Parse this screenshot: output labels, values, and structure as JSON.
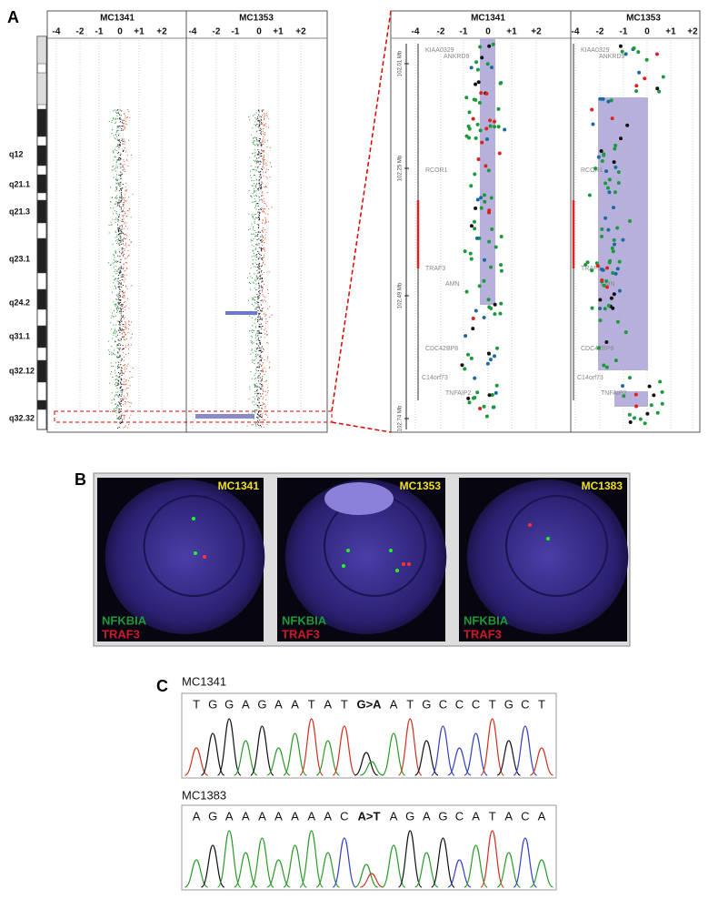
{
  "panel_a": {
    "label": "A",
    "left": {
      "samples": [
        "MC1341",
        "MC1353"
      ],
      "ticks": [
        "-4",
        "-2",
        "-1",
        "0",
        "+1",
        "+2"
      ],
      "bands": [
        "q12",
        "q21.1",
        "q21.3",
        "q23.1",
        "q24.2",
        "q31.1",
        "q32.12",
        "q32.32"
      ]
    },
    "right": {
      "samples": [
        "MC1341",
        "MC1353"
      ],
      "ticks": [
        "-4",
        "-2",
        "-1",
        "0",
        "+1",
        "+2"
      ],
      "positions": [
        "102.01 Mb",
        "102.25 Mb",
        "102.49 Mb",
        "102.74 Mb"
      ],
      "genes": [
        "KIAA0329",
        "ANKRD9",
        "RCOR1",
        "TRAF3",
        "AMN",
        "CDC42BP8",
        "C14orf73",
        "TNFAIP2"
      ]
    }
  },
  "panel_b": {
    "label": "B",
    "images": [
      {
        "sample": "MC1341",
        "probes": [
          "NFKBIA",
          "TRAF3"
        ]
      },
      {
        "sample": "MC1353",
        "probes": [
          "NFKBIA",
          "TRAF3"
        ]
      },
      {
        "sample": "MC1383",
        "probes": [
          "NFKBIA",
          "TRAF3"
        ]
      }
    ]
  },
  "panel_c": {
    "label": "C",
    "traces": [
      {
        "sample": "MC1341",
        "before": [
          "T",
          "G",
          "G",
          "A",
          "G",
          "A",
          "A",
          "T",
          "A",
          "T"
        ],
        "mutation": "G>A",
        "after": [
          "A",
          "T",
          "G",
          "C",
          "C",
          "C",
          "T",
          "G",
          "C",
          "T"
        ]
      },
      {
        "sample": "MC1383",
        "before": [
          "A",
          "G",
          "A",
          "A",
          "A",
          "A",
          "A",
          "A",
          "A",
          "C"
        ],
        "mutation": "A>T",
        "after": [
          "A",
          "G",
          "A",
          "G",
          "C",
          "A",
          "T",
          "A",
          "C",
          "A"
        ]
      }
    ]
  }
}
